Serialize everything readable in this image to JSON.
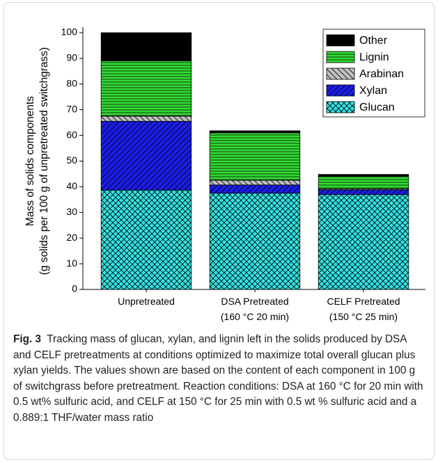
{
  "chart_data": {
    "type": "stacked_bar",
    "ylabel": "Mass of solids components\n(g solids per 100 g of unpretreated switchgrass)",
    "categories": [
      "Unpretreated",
      "DSA Pretreated\n(160 °C 20 min)",
      "CELF Pretreated\n(150 °C 25 min)"
    ],
    "series": [
      {
        "name": "Glucan",
        "color": "#33e3e3",
        "hatch": "crosshatch",
        "values": [
          38.7,
          37.5,
          37
        ]
      },
      {
        "name": "Xylan",
        "color": "#1c1ce8",
        "hatch": "diagonal",
        "values": [
          26.8,
          3.2,
          1.8
        ]
      },
      {
        "name": "Arabinan",
        "color": "#c0c0c0",
        "hatch": "antidiagonal",
        "values": [
          2,
          1.8,
          0.4
        ]
      },
      {
        "name": "Lignin",
        "color": "#33dd33",
        "hatch": "horizontal",
        "values": [
          21.5,
          18.5,
          4.8
        ]
      },
      {
        "name": "Other",
        "color": "#000000",
        "hatch": "none",
        "values": [
          11,
          0.8,
          0.8
        ]
      }
    ],
    "ylim": [
      0,
      100
    ],
    "yticks": [
      0,
      10,
      20,
      30,
      40,
      50,
      60,
      70,
      80,
      90,
      100
    ],
    "legend": "upper right"
  },
  "caption": {
    "label": "Fig. 3",
    "text": "Tracking mass of glucan, xylan, and lignin left in the solids produced by DSA and CELF pretreatments at conditions optimized to maximize total overall glucan plus xylan yields. The values shown are based on the content of each component in 100 g of switchgrass before pretreatment. Reaction conditions: DSA at 160 °C for 20 min with 0.5 wt% sulfuric acid, and CELF at 150 °C for 25 min with 0.5 wt % sulfuric acid and a 0.889:1 THF/water mass ratio"
  }
}
